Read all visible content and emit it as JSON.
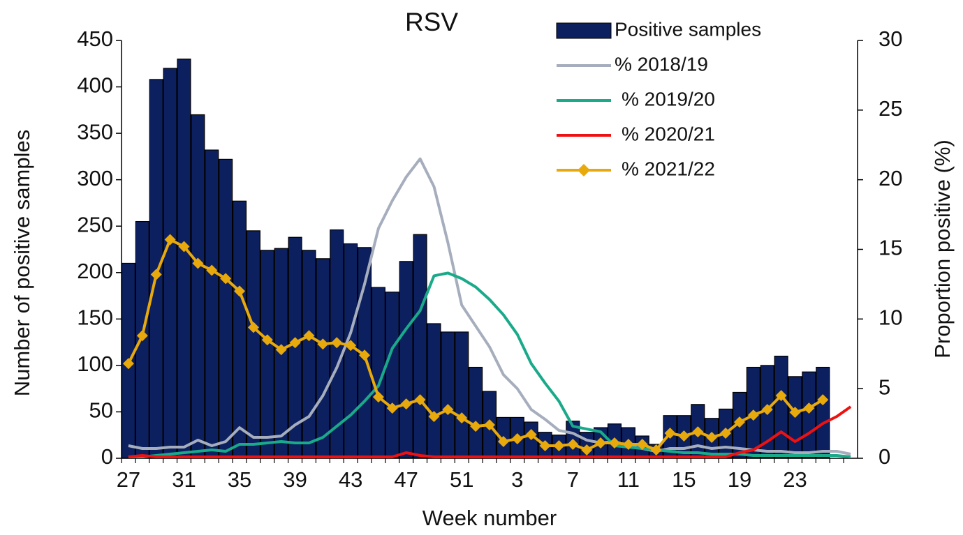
{
  "chart_data": {
    "type": "bar_line",
    "title": "RSV",
    "xlabel": "Week number",
    "ylabel": "Number of positive samples",
    "y2label": "Proportion positive (%)",
    "categories": [
      "27",
      null,
      null,
      null,
      "31",
      null,
      null,
      null,
      "35",
      null,
      null,
      null,
      "39",
      null,
      null,
      null,
      "43",
      null,
      null,
      null,
      "47",
      null,
      null,
      null,
      "51",
      null,
      null,
      null,
      "3",
      null,
      null,
      null,
      "7",
      null,
      null,
      null,
      "11",
      null,
      null,
      null,
      "15",
      null,
      null,
      null,
      "19",
      null,
      null,
      null,
      "23",
      null,
      null,
      null,
      null
    ],
    "ylim": [
      0,
      450
    ],
    "yticks": [
      0,
      50,
      100,
      150,
      200,
      250,
      300,
      350,
      400,
      450
    ],
    "y2lim": [
      0,
      30
    ],
    "y2ticks": [
      0,
      5,
      10,
      15,
      20,
      25,
      30
    ],
    "grid": false,
    "legend": "top-right",
    "series": [
      {
        "name": "Positive samples",
        "type": "bar",
        "color": "#0c1f5e",
        "values": [
          210,
          255,
          408,
          420,
          430,
          370,
          332,
          322,
          277,
          245,
          224,
          226,
          238,
          224,
          215,
          246,
          231,
          227,
          184,
          179,
          212,
          241,
          145,
          136,
          136,
          98,
          72,
          44,
          44,
          39,
          28,
          25,
          40,
          28,
          33,
          37,
          33,
          24,
          15,
          46,
          46,
          58,
          43,
          53,
          71,
          98,
          100,
          110,
          88,
          93,
          98,
          null,
          null
        ]
      },
      {
        "name": "% 2018/19",
        "type": "line",
        "axis": "y2",
        "color": "#a6aebd",
        "values": [
          0.9,
          0.7,
          0.7,
          0.8,
          0.8,
          1.3,
          0.9,
          1.2,
          2.2,
          1.5,
          1.5,
          1.6,
          2.4,
          3.0,
          4.5,
          6.5,
          9.0,
          12.5,
          16.5,
          18.5,
          20.2,
          21.5,
          19.5,
          15.5,
          11.0,
          9.5,
          8.0,
          6.0,
          5.0,
          3.5,
          2.8,
          2.0,
          1.8,
          1.3,
          1.1,
          1.2,
          0.9,
          0.7,
          0.5,
          0.7,
          0.7,
          0.9,
          0.7,
          0.8,
          0.7,
          0.6,
          0.5,
          0.5,
          0.4,
          0.4,
          0.5,
          0.5,
          0.3
        ]
      },
      {
        "name": "% 2019/20",
        "type": "line",
        "axis": "y2",
        "color": "#1aaa8a",
        "values": [
          0.1,
          0.1,
          0.2,
          0.3,
          0.4,
          0.5,
          0.6,
          0.5,
          1.0,
          1.0,
          1.1,
          1.2,
          1.1,
          1.1,
          1.5,
          2.3,
          3.1,
          4.1,
          5.2,
          7.9,
          9.3,
          10.6,
          13.1,
          13.3,
          12.9,
          12.3,
          11.4,
          10.3,
          8.9,
          6.8,
          5.4,
          4.1,
          2.3,
          2.1,
          1.9,
          0.9,
          0.8,
          0.7,
          0.6,
          0.5,
          0.4,
          0.4,
          0.3,
          0.3,
          0.3,
          0.2,
          0.2,
          0.2,
          0.2,
          0.2,
          0.2,
          0.2,
          0.1
        ]
      },
      {
        "name": "% 2020/21",
        "type": "line",
        "axis": "y2",
        "color": "#ee1111",
        "values": [
          0.1,
          0.2,
          0.1,
          0.1,
          0.1,
          0.1,
          0.1,
          0.1,
          0.1,
          0.1,
          0.1,
          0.1,
          0.1,
          0.1,
          0.1,
          0.1,
          0.1,
          0.1,
          0.1,
          0.1,
          0.4,
          0.2,
          0.1,
          0.1,
          0.1,
          0.1,
          0.1,
          0.1,
          0.1,
          0.1,
          0.1,
          0.1,
          0.1,
          0.1,
          0.1,
          0.1,
          0.1,
          0.1,
          0.1,
          0.1,
          0.1,
          0.1,
          0.1,
          0.1,
          0.4,
          0.6,
          1.2,
          1.9,
          1.2,
          1.8,
          2.5,
          3.0,
          3.7
        ]
      },
      {
        "name": "% 2021/22",
        "type": "line",
        "axis": "y2",
        "color": "#e8a90c",
        "markers": true,
        "values": [
          6.8,
          8.8,
          13.2,
          15.7,
          15.2,
          14.0,
          13.5,
          12.9,
          12.0,
          9.4,
          8.5,
          7.8,
          8.3,
          8.8,
          8.2,
          8.3,
          8.1,
          7.4,
          4.4,
          3.6,
          3.9,
          4.2,
          3.0,
          3.5,
          2.9,
          2.3,
          2.4,
          1.2,
          1.4,
          1.7,
          0.9,
          0.9,
          1.0,
          0.6,
          1.1,
          1.1,
          1.0,
          1.0,
          0.6,
          1.8,
          1.6,
          1.9,
          1.5,
          1.8,
          2.6,
          3.1,
          3.5,
          4.5,
          3.3,
          3.6,
          4.2,
          null,
          null
        ]
      }
    ]
  }
}
